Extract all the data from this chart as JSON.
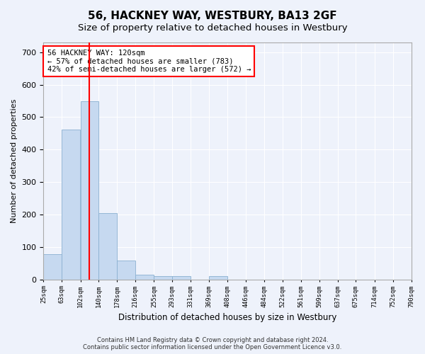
{
  "title": "56, HACKNEY WAY, WESTBURY, BA13 2GF",
  "subtitle": "Size of property relative to detached houses in Westbury",
  "xlabel": "Distribution of detached houses by size in Westbury",
  "ylabel": "Number of detached properties",
  "footer_line1": "Contains HM Land Registry data © Crown copyright and database right 2024.",
  "footer_line2": "Contains public sector information licensed under the Open Government Licence v3.0.",
  "annotation_line1": "56 HACKNEY WAY: 120sqm",
  "annotation_line2": "← 57% of detached houses are smaller (783)",
  "annotation_line3": "42% of semi-detached houses are larger (572) →",
  "bar_color": "#c6d9f0",
  "bar_edge_color": "#8ab0d0",
  "red_line_x": 120,
  "bin_edges": [
    25,
    63,
    102,
    140,
    178,
    216,
    255,
    293,
    331,
    369,
    408,
    446,
    484,
    522,
    561,
    599,
    637,
    675,
    714,
    752
  ],
  "bin_width": 38,
  "values": [
    78,
    462,
    549,
    204,
    57,
    15,
    9,
    9,
    0,
    9,
    0,
    0,
    0,
    0,
    0,
    0,
    0,
    0,
    0,
    0
  ],
  "xtick_labels": [
    "25sqm",
    "63sqm",
    "102sqm",
    "140sqm",
    "178sqm",
    "216sqm",
    "255sqm",
    "293sqm",
    "331sqm",
    "369sqm",
    "408sqm",
    "446sqm",
    "484sqm",
    "522sqm",
    "561sqm",
    "599sqm",
    "637sqm",
    "675sqm",
    "714sqm",
    "752sqm",
    "790sqm"
  ],
  "ylim": [
    0,
    730
  ],
  "yticks": [
    0,
    100,
    200,
    300,
    400,
    500,
    600,
    700
  ],
  "background_color": "#eef2fb",
  "plot_bg_color": "#eef2fb",
  "grid_color": "#ffffff",
  "title_fontsize": 11,
  "subtitle_fontsize": 9.5
}
